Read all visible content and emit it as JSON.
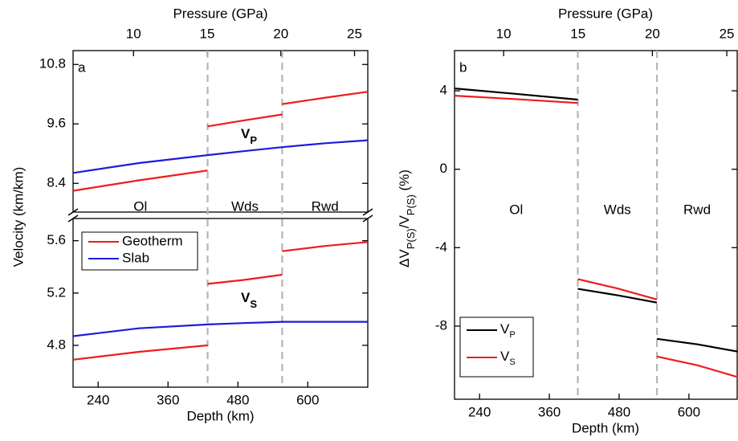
{
  "chart_data": [
    {
      "type": "line",
      "label": "a",
      "xlabel": "Depth (km)",
      "x2label": "Pressure (GPa)",
      "ylabel": "Velocity (km/km)",
      "x": [
        197,
        310,
        428,
        428,
        428,
        490,
        556,
        556,
        556,
        630,
        703
      ],
      "xlim": [
        197,
        703
      ],
      "xticks": [
        240,
        360,
        480,
        600
      ],
      "x2lim": [
        5.9,
        25.9
      ],
      "x2ticks": [
        10,
        15,
        20,
        25
      ],
      "ylim": [
        7.82,
        11.08
      ],
      "yticks": [
        8.4,
        9.6,
        10.8
      ],
      "ylim_lower": [
        4.48,
        5.77
      ],
      "yticks_lower": [
        4.8,
        5.2,
        5.6
      ],
      "boundaries": [
        428,
        556
      ],
      "regions": [
        "Ol",
        "Wds",
        "Rwd"
      ],
      "annotations": [
        [
          "V",
          "P"
        ],
        [
          "V",
          "S"
        ]
      ],
      "series": [
        {
          "name": "Geotherm",
          "color": "#ee1c1c",
          "axis": "y",
          "values": [
            8.25,
            8.46,
            8.66,
            null,
            9.55,
            9.67,
            9.79,
            null,
            10.0,
            10.13,
            10.25
          ]
        },
        {
          "name": "Slab",
          "color": "#1c1cd9",
          "axis": "y",
          "values": [
            8.61,
            8.81,
            8.97,
            8.97,
            8.97,
            9.05,
            9.13,
            9.13,
            9.13,
            9.21,
            9.27
          ]
        },
        {
          "name": "Geotherm",
          "color": "#ee1c1c",
          "axis": "y_lower",
          "values": [
            4.69,
            4.75,
            4.8,
            null,
            5.27,
            5.3,
            5.34,
            null,
            5.52,
            5.56,
            5.59
          ]
        },
        {
          "name": "Slab",
          "color": "#1c1cd9",
          "axis": "y_lower",
          "values": [
            4.87,
            4.93,
            4.96,
            4.96,
            4.96,
            4.97,
            4.98,
            4.98,
            4.98,
            4.98,
            4.98
          ]
        }
      ]
    },
    {
      "type": "line",
      "label": "b",
      "xlabel": "Depth (km)",
      "x2label": "Pressure (GPa)",
      "ylabel": [
        "ΔV",
        "P(S)",
        "/V",
        "P(S)",
        " (%)"
      ],
      "x": [
        197,
        300,
        409,
        409,
        409,
        477,
        545,
        545,
        545,
        615,
        684
      ],
      "xlim": [
        197,
        683
      ],
      "xticks": [
        240,
        360,
        480,
        600
      ],
      "x2lim": [
        6.7,
        25.7
      ],
      "x2ticks": [
        10,
        15,
        20,
        25
      ],
      "ylim": [
        -11.73,
        6.05
      ],
      "yticks": [
        4,
        0,
        -4,
        -8
      ],
      "boundaries": [
        409,
        545
      ],
      "regions": [
        "Ol",
        "Wds",
        "Rwd"
      ],
      "series": [
        {
          "name": [
            "V",
            "P"
          ],
          "color": "#000000",
          "axis": "y",
          "values": [
            4.12,
            3.85,
            3.55,
            null,
            -6.1,
            -6.43,
            -6.8,
            null,
            -8.65,
            -8.93,
            -9.3
          ]
        },
        {
          "name": [
            "V",
            "S"
          ],
          "color": "#ee1c1c",
          "axis": "y",
          "values": [
            3.75,
            3.58,
            3.38,
            null,
            -5.6,
            -6.08,
            -6.64,
            null,
            -9.55,
            -10.0,
            -10.6
          ]
        }
      ]
    }
  ]
}
